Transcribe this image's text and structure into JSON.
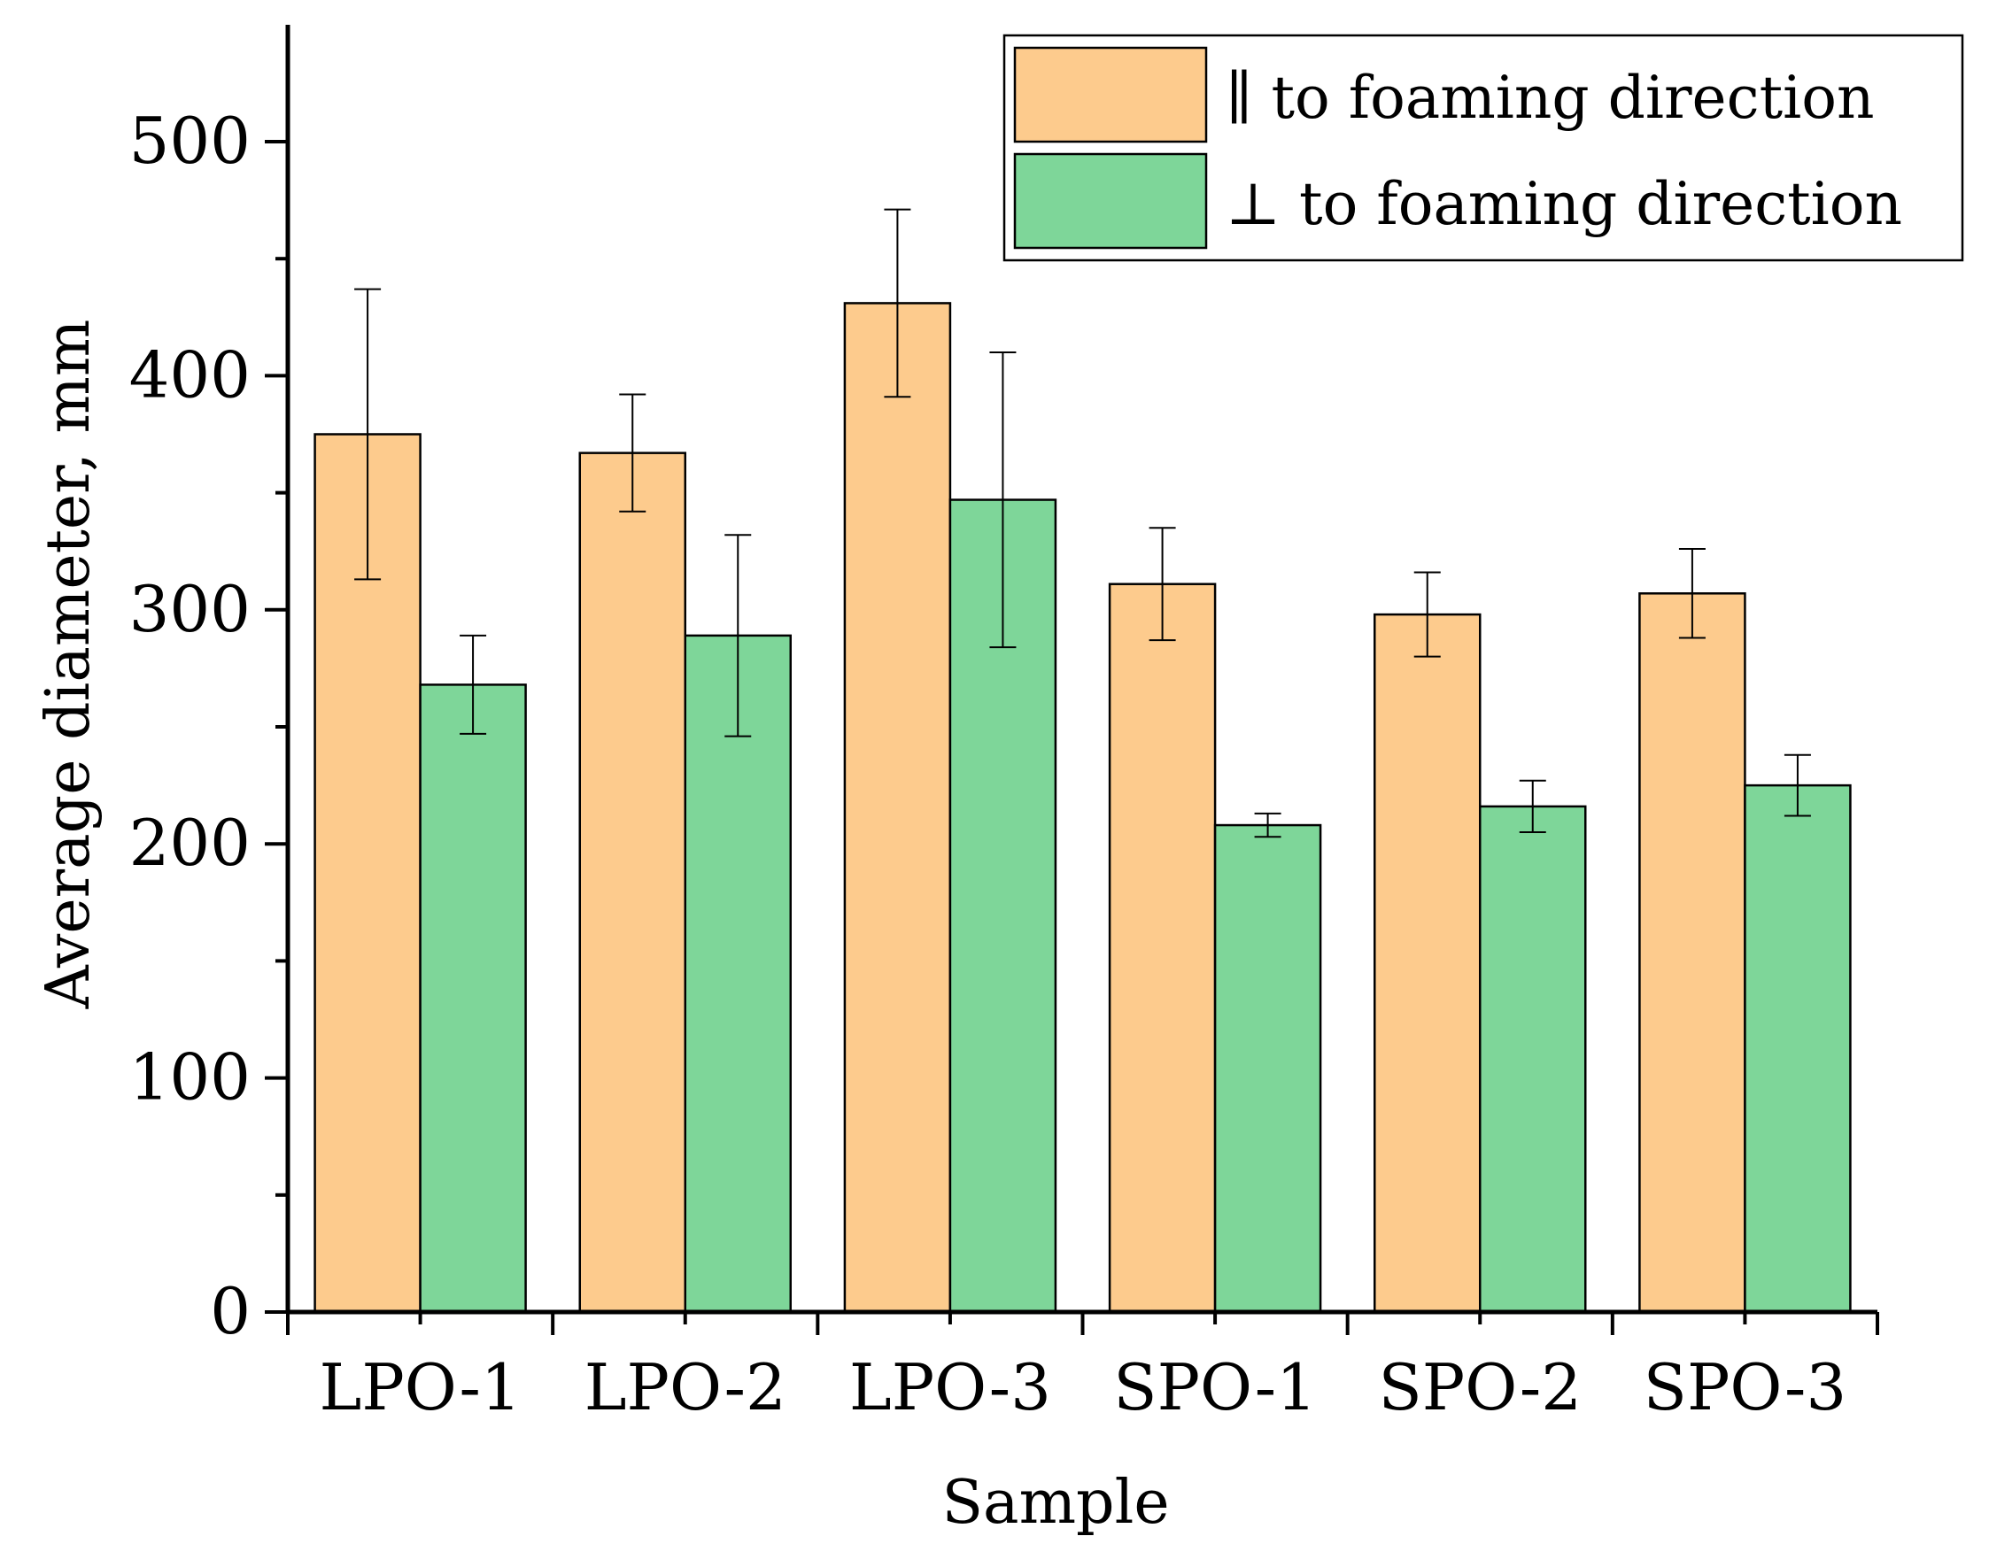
{
  "chart_data": {
    "type": "bar",
    "title": "",
    "xlabel": "Sample",
    "ylabel": "Average diameter, mm",
    "categories": [
      "LPO-1",
      "LPO-2",
      "LPO-3",
      "SPO-1",
      "SPO-2",
      "SPO-3"
    ],
    "ylim": [
      0,
      550
    ],
    "yticks": [
      0,
      100,
      200,
      300,
      400,
      500
    ],
    "yticklabels": [
      "0",
      "100",
      "200",
      "300",
      "400",
      "500"
    ],
    "legend_position": "top-right",
    "series": [
      {
        "name": "∥ to foaming direction",
        "color": "#FDCB8D",
        "values": [
          375,
          367,
          431,
          311,
          298,
          307
        ],
        "errors": [
          62,
          25,
          40,
          24,
          18,
          19
        ]
      },
      {
        "name": "⊥ to foaming direction",
        "color": "#7ED699",
        "values": [
          268,
          289,
          347,
          208,
          216,
          225
        ],
        "errors": [
          21,
          43,
          63,
          5,
          11,
          13
        ]
      }
    ]
  }
}
